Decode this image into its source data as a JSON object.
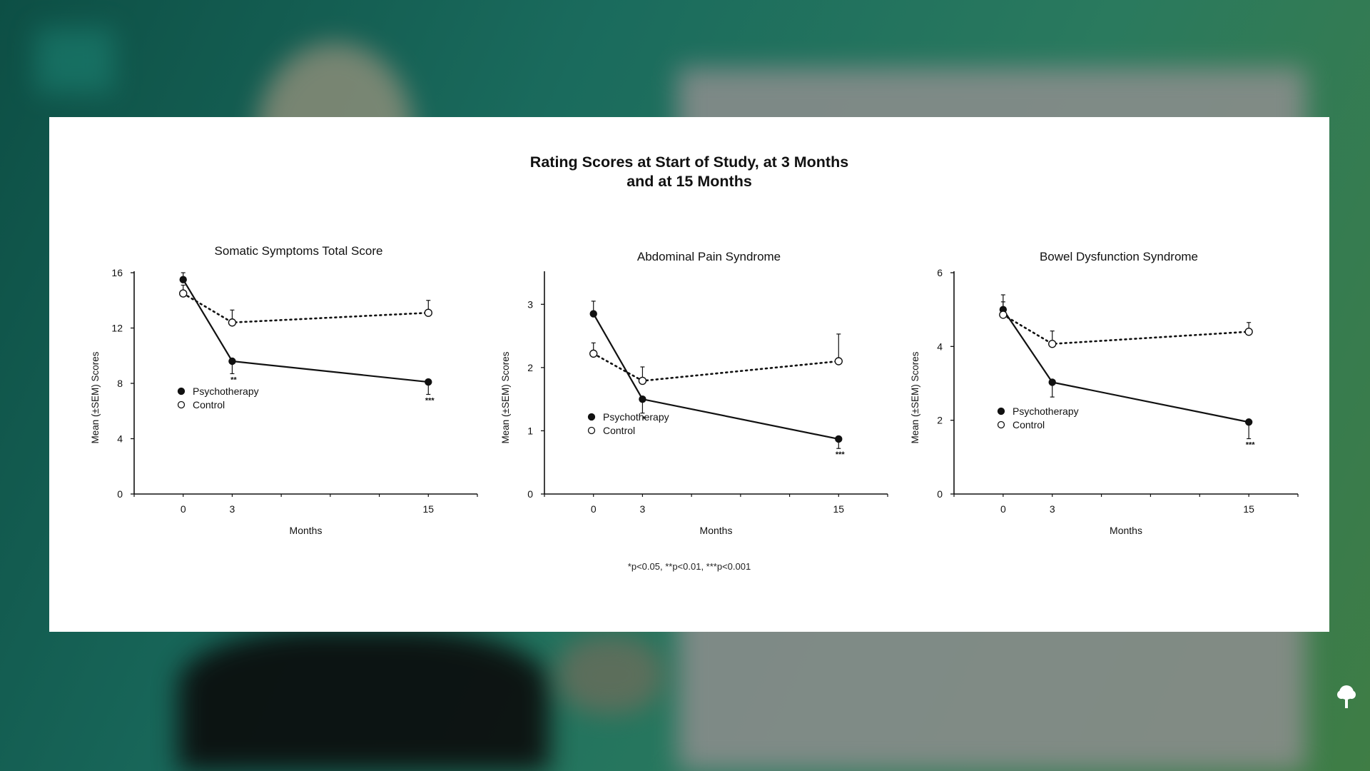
{
  "slide": {
    "title_line1": "Rating Scores at Start of Study, at 3 Months",
    "title_line2": "and at 15 Months",
    "footnote": "*p<0.05, **p<0.01, ***p<0.001"
  },
  "chart_data": [
    {
      "type": "line",
      "title": "Somatic Symptoms Total Score",
      "xlabel": "Months",
      "ylabel": "Mean (±SEM) Scores",
      "x": [
        0,
        3,
        15
      ],
      "xlim": [
        -3,
        18
      ],
      "ylim": [
        0,
        16
      ],
      "yticks": [
        0,
        4,
        8,
        12,
        16
      ],
      "grid": false,
      "legend_position": "lower-left",
      "series": [
        {
          "name": "Psychotherapy",
          "style": "solid",
          "marker": "filled",
          "values": [
            15.5,
            9.6,
            8.1
          ],
          "sem": [
            0.5,
            0.9,
            0.9
          ],
          "sig": [
            "",
            "**",
            "***"
          ]
        },
        {
          "name": "Control",
          "style": "dotted",
          "marker": "open",
          "values": [
            14.5,
            12.4,
            13.1
          ],
          "sem": [
            0.6,
            0.9,
            0.9
          ],
          "sig": [
            "",
            "",
            ""
          ]
        }
      ]
    },
    {
      "type": "line",
      "title": "Abdominal Pain Syndrome",
      "xlabel": "Months",
      "ylabel": "Mean (±SEM) Scores",
      "x": [
        0,
        3,
        15
      ],
      "xlim": [
        -3,
        18
      ],
      "ylim": [
        0,
        3.5
      ],
      "yticks": [
        0,
        1,
        2,
        3
      ],
      "grid": false,
      "legend_position": "lower-left",
      "series": [
        {
          "name": "Psychotherapy",
          "style": "solid",
          "marker": "filled",
          "values": [
            2.85,
            1.5,
            0.87
          ],
          "sem": [
            0.2,
            0.22,
            0.15
          ],
          "sig": [
            "",
            "*",
            "***"
          ]
        },
        {
          "name": "Control",
          "style": "dotted",
          "marker": "open",
          "values": [
            2.22,
            1.79,
            2.1
          ],
          "sem": [
            0.17,
            0.22,
            0.43
          ],
          "sig": [
            "",
            "",
            ""
          ]
        }
      ]
    },
    {
      "type": "line",
      "title": "Bowel Dysfunction Syndrome",
      "xlabel": "Months",
      "ylabel": "Mean (±SEM) Scores",
      "x": [
        0,
        3,
        15
      ],
      "xlim": [
        -3,
        18
      ],
      "ylim": [
        0,
        6
      ],
      "yticks": [
        0,
        2,
        4,
        6
      ],
      "grid": false,
      "legend_position": "lower-left",
      "series": [
        {
          "name": "Psychotherapy",
          "style": "solid",
          "marker": "filled",
          "values": [
            5.0,
            3.03,
            1.95
          ],
          "sem": [
            0.4,
            0.4,
            0.45
          ],
          "sig": [
            "",
            "",
            "***"
          ]
        },
        {
          "name": "Control",
          "style": "dotted",
          "marker": "open",
          "values": [
            4.86,
            4.07,
            4.4
          ],
          "sem": [
            0.35,
            0.35,
            0.25
          ],
          "sig": [
            "",
            "",
            ""
          ]
        }
      ]
    }
  ]
}
